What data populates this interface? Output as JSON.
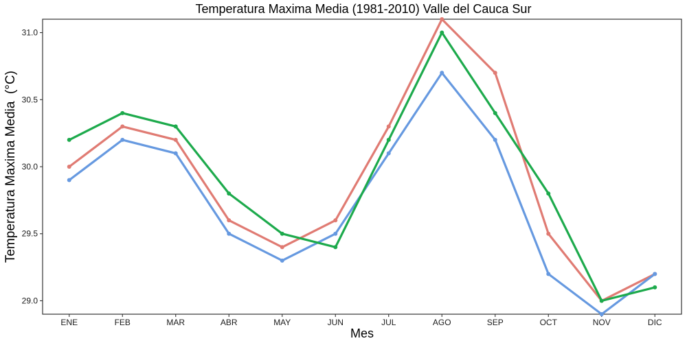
{
  "chart_data": {
    "type": "line",
    "title": "Temperatura Maxima Media (1981-2010)  Valle del Cauca Sur",
    "xlabel": "Mes",
    "ylabel": "Temperatura Maxima Media  (°C)",
    "categories": [
      "ENE",
      "FEB",
      "MAR",
      "ABR",
      "MAY",
      "JUN",
      "JUL",
      "AGO",
      "SEP",
      "OCT",
      "NOV",
      "DIC"
    ],
    "yticks": [
      "29.0",
      "29.5",
      "30.0",
      "30.5",
      "31.0"
    ],
    "ylim": [
      28.9,
      31.1
    ],
    "grid": false,
    "legend": "none",
    "series": [
      {
        "color": "#E07B73",
        "values": [
          30.0,
          30.3,
          30.2,
          29.6,
          29.4,
          29.6,
          30.3,
          31.1,
          30.7,
          29.5,
          29.0,
          29.2
        ]
      },
      {
        "color": "#6699E0",
        "values": [
          29.9,
          30.2,
          30.1,
          29.5,
          29.3,
          29.5,
          30.1,
          30.7,
          30.2,
          29.2,
          28.9,
          29.2
        ]
      },
      {
        "color": "#1DAA4C",
        "values": [
          30.2,
          30.4,
          30.3,
          29.8,
          29.5,
          29.4,
          30.2,
          31.0,
          30.4,
          29.8,
          29.0,
          29.1
        ]
      }
    ]
  }
}
